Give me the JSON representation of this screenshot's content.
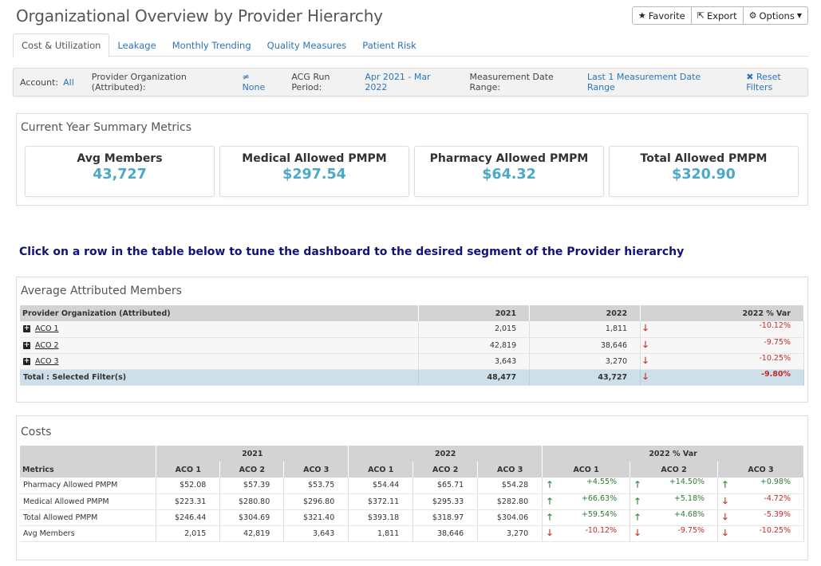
{
  "page": {
    "title": "Organizational Overview by Provider Hierarchy"
  },
  "toolbar": {
    "favorite": {
      "label": "Favorite",
      "icon": "star-icon"
    },
    "export": {
      "label": "Export",
      "icon": "export-icon"
    },
    "options": {
      "label": "Options",
      "icon": "gear-icon"
    }
  },
  "tabs": [
    {
      "label": "Cost & Utilization",
      "active": true
    },
    {
      "label": "Leakage"
    },
    {
      "label": "Monthly Trending"
    },
    {
      "label": "Quality Measures"
    },
    {
      "label": "Patient Risk"
    }
  ],
  "filters": {
    "account_label": "Account:",
    "account_value": "All",
    "provider_label": "Provider Organization (Attributed):",
    "provider_value": "≠ None",
    "acg_label": "ACG Run Period:",
    "acg_value": "Apr 2021 - Mar 2022",
    "mdr_label": "Measurement Date Range:",
    "mdr_value": "Last 1 Measurement Date Range",
    "reset_label": "Reset Filters"
  },
  "summary": {
    "title": "Current Year Summary Metrics",
    "cards": [
      {
        "label": "Avg Members",
        "value": "43,727"
      },
      {
        "label": "Medical Allowed PMPM",
        "value": "$297.54"
      },
      {
        "label": "Pharmacy Allowed PMPM",
        "value": "$64.32"
      },
      {
        "label": "Total Allowed PMPM",
        "value": "$320.90"
      }
    ]
  },
  "instruction": "Click on a row in the table below to tune the dashboard to the desired segment of the Provider hierarchy",
  "attributed": {
    "title": "Average Attributed Members",
    "headers": [
      "Provider Organization (Attributed)",
      "2021",
      "2022",
      "2022 % Var"
    ],
    "rows": [
      {
        "name": "ACO 1",
        "y2021": "2,015",
        "y2022": "1,811",
        "var": "-10.12%"
      },
      {
        "name": "ACO 2",
        "y2021": "42,819",
        "y2022": "38,646",
        "var": "-9.75%"
      },
      {
        "name": "ACO 3",
        "y2021": "3,643",
        "y2022": "3,270",
        "var": "-10.25%"
      }
    ],
    "total": {
      "name": "Total : Selected Filter(s)",
      "y2021": "48,477",
      "y2022": "43,727",
      "var": "-9.80%"
    }
  },
  "costs": {
    "title": "Costs",
    "group_headers": [
      "2021",
      "2022",
      "2022 % Var"
    ],
    "metrics_header": "Metrics",
    "aco_headers": [
      "ACO 1",
      "ACO 2",
      "ACO 3"
    ],
    "rows": [
      {
        "metric": "Pharmacy Allowed PMPM",
        "y2021": [
          "$52.08",
          "$57.39",
          "$53.75"
        ],
        "y2022": [
          "$54.44",
          "$65.71",
          "$54.28"
        ],
        "var": [
          {
            "v": "+4.55%",
            "dir": "up"
          },
          {
            "v": "+14.50%",
            "dir": "up"
          },
          {
            "v": "+0.98%",
            "dir": "up"
          }
        ]
      },
      {
        "metric": "Medical Allowed PMPM",
        "y2021": [
          "$223.31",
          "$280.80",
          "$296.80"
        ],
        "y2022": [
          "$372.11",
          "$295.33",
          "$282.80"
        ],
        "var": [
          {
            "v": "+66.63%",
            "dir": "up"
          },
          {
            "v": "+5.18%",
            "dir": "up"
          },
          {
            "v": "-4.72%",
            "dir": "down"
          }
        ]
      },
      {
        "metric": "Total Allowed PMPM",
        "y2021": [
          "$246.44",
          "$304.69",
          "$321.40"
        ],
        "y2022": [
          "$393.18",
          "$318.97",
          "$304.06"
        ],
        "var": [
          {
            "v": "+59.54%",
            "dir": "up"
          },
          {
            "v": "+4.68%",
            "dir": "up"
          },
          {
            "v": "-5.39%",
            "dir": "down"
          }
        ]
      },
      {
        "metric": "Avg Members",
        "y2021": [
          "2,015",
          "42,819",
          "3,643"
        ],
        "y2022": [
          "1,811",
          "38,646",
          "3,270"
        ],
        "var": [
          {
            "v": "-10.12%",
            "dir": "down"
          },
          {
            "v": "-9.75%",
            "dir": "down"
          },
          {
            "v": "-10.25%",
            "dir": "down"
          }
        ]
      }
    ]
  },
  "colors": {
    "accent": "#2a74b8",
    "metric_value": "#4aa8c8",
    "negative": "#c62828",
    "positive": "#2e7d32",
    "instruction": "#12127a",
    "total_row": "#cde0ea"
  }
}
